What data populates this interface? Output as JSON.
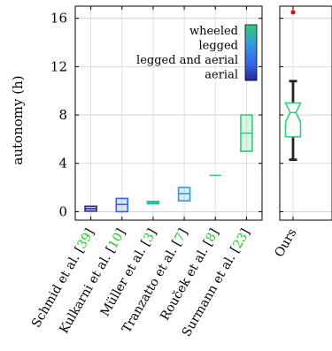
{
  "chart_data": [
    {
      "type": "box",
      "ylabel": "autonomy (h)",
      "ylim": [
        -0.7,
        17
      ],
      "yticks": [
        0,
        4,
        8,
        12,
        16
      ],
      "grid": true,
      "legend": {
        "placement": "top-right",
        "entries": [
          {
            "label": "wheeled",
            "color": "#33cc77"
          },
          {
            "label": "legged",
            "color": "#3399dd"
          },
          {
            "label": "legged and aerial",
            "color": "#3366ee"
          },
          {
            "label": "aerial",
            "color": "#2a2a99"
          }
        ]
      },
      "categories": [
        {
          "name": "Schmid et al. [",
          "ref": "39",
          "suffix": "]",
          "color": "#2a2a99",
          "q1": 0.05,
          "median": 0.25,
          "q3": 0.45
        },
        {
          "name": "Kulkarni et al. [",
          "ref": "10",
          "suffix": "]",
          "color": "#3366ee",
          "q1": 0.0,
          "median": 0.6,
          "q3": 1.1
        },
        {
          "name": "Müller et al. [",
          "ref": "3",
          "suffix": "]",
          "color": "#33bbaa",
          "q1": 0.65,
          "median": 0.75,
          "q3": 0.85
        },
        {
          "name": "Tranzatto et al. [",
          "ref": "7",
          "suffix": "]",
          "color": "#3399dd",
          "q1": 0.9,
          "median": 1.5,
          "q3": 2.0
        },
        {
          "name": "Rouček et al. [",
          "ref": "8",
          "suffix": "]",
          "color": "#33cc77",
          "q1": 3.0,
          "median": 3.0,
          "q3": 3.0
        },
        {
          "name": "Surmann et al. [",
          "ref": "23",
          "suffix": "]",
          "color": "#33cc77",
          "q1": 5.0,
          "median": 6.5,
          "q3": 8.0
        }
      ]
    },
    {
      "type": "box",
      "category": "Ours",
      "color": "#33cc77",
      "whisker_low": 4.3,
      "q1": 6.2,
      "median": 8.2,
      "q3": 9.0,
      "whisker_high": 10.8,
      "outliers": [
        16.5
      ]
    }
  ]
}
